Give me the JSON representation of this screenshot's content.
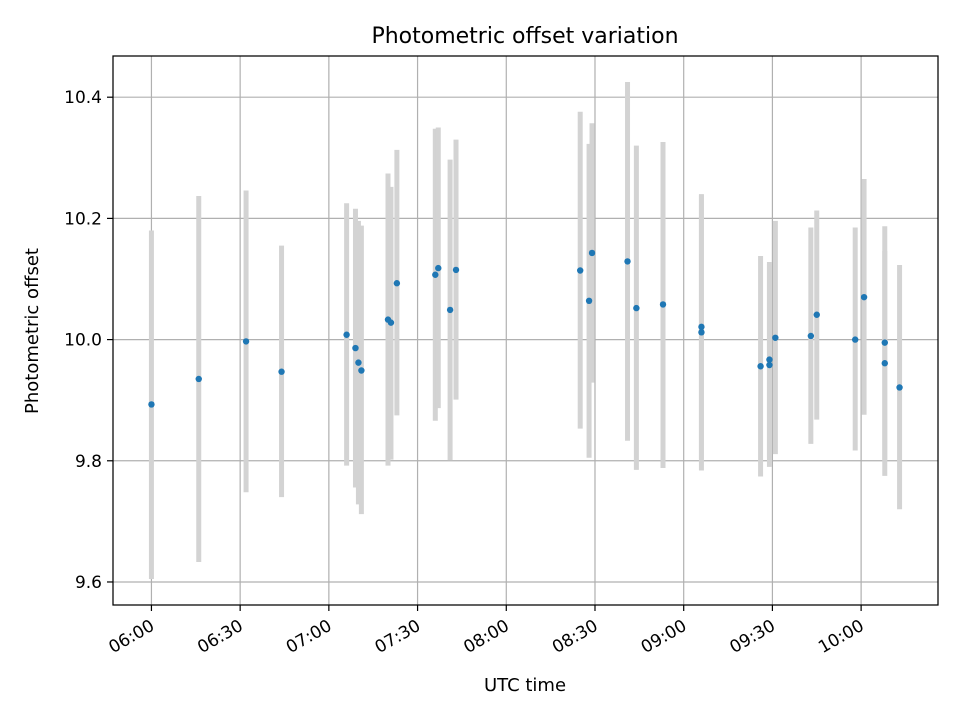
{
  "chart_data": {
    "type": "scatter",
    "title": "Photometric offset variation",
    "xlabel": "UTC time",
    "ylabel": "Photometric offset",
    "x_axis": "time",
    "xlim": [
      "05:47",
      "10:26"
    ],
    "ylim": [
      9.562,
      10.468
    ],
    "x_ticks": [
      "06:00",
      "06:30",
      "07:00",
      "07:30",
      "08:00",
      "08:30",
      "09:00",
      "09:30",
      "10:00"
    ],
    "y_ticks": [
      "9.6",
      "9.8",
      "10.0",
      "10.2",
      "10.4"
    ],
    "grid": true,
    "colors": {
      "point": "#1f77b4",
      "errorbar": "#d3d3d3",
      "grid": "#b0b0b0"
    },
    "points": [
      {
        "x": "06:00",
        "y": 9.893,
        "ylow": 9.605,
        "yhigh": 10.18
      },
      {
        "x": "06:16",
        "y": 9.935,
        "ylow": 9.633,
        "yhigh": 10.237
      },
      {
        "x": "06:32",
        "y": 9.997,
        "ylow": 9.748,
        "yhigh": 10.246
      },
      {
        "x": "06:44",
        "y": 9.947,
        "ylow": 9.74,
        "yhigh": 10.155
      },
      {
        "x": "07:06",
        "y": 10.008,
        "ylow": 9.792,
        "yhigh": 10.225
      },
      {
        "x": "07:09",
        "y": 9.986,
        "ylow": 9.756,
        "yhigh": 10.216
      },
      {
        "x": "07:10",
        "y": 9.962,
        "ylow": 9.728,
        "yhigh": 10.196
      },
      {
        "x": "07:11",
        "y": 9.949,
        "ylow": 9.712,
        "yhigh": 10.188
      },
      {
        "x": "07:20",
        "y": 10.033,
        "ylow": 9.792,
        "yhigh": 10.274
      },
      {
        "x": "07:21",
        "y": 10.028,
        "ylow": 9.802,
        "yhigh": 10.252
      },
      {
        "x": "07:23",
        "y": 10.093,
        "ylow": 9.875,
        "yhigh": 10.313
      },
      {
        "x": "07:36",
        "y": 10.107,
        "ylow": 9.866,
        "yhigh": 10.348
      },
      {
        "x": "07:37",
        "y": 10.118,
        "ylow": 9.887,
        "yhigh": 10.35
      },
      {
        "x": "07:41",
        "y": 10.049,
        "ylow": 9.801,
        "yhigh": 10.297
      },
      {
        "x": "07:43",
        "y": 10.115,
        "ylow": 9.901,
        "yhigh": 10.33
      },
      {
        "x": "08:25",
        "y": 10.114,
        "ylow": 9.853,
        "yhigh": 10.376
      },
      {
        "x": "08:28",
        "y": 10.064,
        "ylow": 9.805,
        "yhigh": 10.323
      },
      {
        "x": "08:29",
        "y": 10.143,
        "ylow": 9.929,
        "yhigh": 10.357
      },
      {
        "x": "08:41",
        "y": 10.129,
        "ylow": 9.833,
        "yhigh": 10.425
      },
      {
        "x": "08:44",
        "y": 10.052,
        "ylow": 9.785,
        "yhigh": 10.32
      },
      {
        "x": "08:53",
        "y": 10.058,
        "ylow": 9.788,
        "yhigh": 10.326
      },
      {
        "x": "09:06",
        "y": 10.021,
        "ylow": 9.803,
        "yhigh": 10.24
      },
      {
        "x": "09:06",
        "y": 10.012,
        "ylow": 9.784,
        "yhigh": 10.238
      },
      {
        "x": "09:26",
        "y": 9.956,
        "ylow": 9.774,
        "yhigh": 10.138
      },
      {
        "x": "09:29",
        "y": 9.958,
        "ylow": 9.79,
        "yhigh": 10.125
      },
      {
        "x": "09:29",
        "y": 9.967,
        "ylow": 9.805,
        "yhigh": 10.128
      },
      {
        "x": "09:31",
        "y": 10.003,
        "ylow": 9.811,
        "yhigh": 10.196
      },
      {
        "x": "09:43",
        "y": 10.006,
        "ylow": 9.828,
        "yhigh": 10.185
      },
      {
        "x": "09:45",
        "y": 10.041,
        "ylow": 9.868,
        "yhigh": 10.213
      },
      {
        "x": "09:58",
        "y": 10.0,
        "ylow": 9.817,
        "yhigh": 10.185
      },
      {
        "x": "10:01",
        "y": 10.07,
        "ylow": 9.876,
        "yhigh": 10.265
      },
      {
        "x": "10:08",
        "y": 9.961,
        "ylow": 9.775,
        "yhigh": 10.146
      },
      {
        "x": "10:08",
        "y": 9.995,
        "ylow": 9.802,
        "yhigh": 10.187
      },
      {
        "x": "10:13",
        "y": 9.921,
        "ylow": 9.72,
        "yhigh": 10.123
      }
    ]
  }
}
